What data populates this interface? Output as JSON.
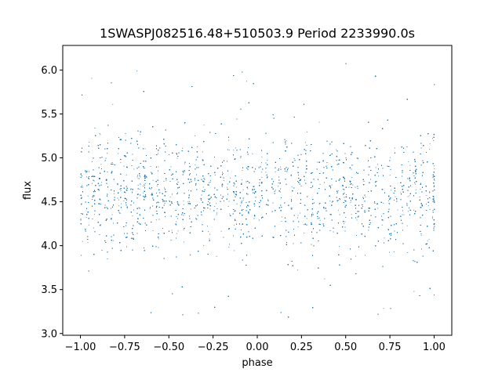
{
  "chart_data": {
    "type": "scatter",
    "title": "1SWASPJ082516.48+510503.9 Period 2233990.0s",
    "xlabel": "phase",
    "ylabel": "flux",
    "xlim": [
      -1.1,
      1.1
    ],
    "ylim": [
      2.98,
      6.28
    ],
    "x_ticks": [
      -1.0,
      -0.75,
      -0.5,
      -0.25,
      0.0,
      0.25,
      0.5,
      0.75,
      1.0
    ],
    "x_tick_labels": [
      "−1.00",
      "−0.75",
      "−0.50",
      "−0.25",
      "0.00",
      "0.25",
      "0.50",
      "0.75",
      "1.00"
    ],
    "y_ticks": [
      3.0,
      3.5,
      4.0,
      4.5,
      5.0,
      5.5,
      6.0
    ],
    "y_tick_labels": [
      "3.0",
      "3.5",
      "4.0",
      "4.5",
      "5.0",
      "5.5",
      "6.0"
    ],
    "grid": false,
    "legend": "none",
    "point_color": "#1f77b4",
    "series": [
      {
        "x_range": [
          -1.0,
          1.0
        ],
        "y_core_range": [
          3.85,
          5.35
        ],
        "y_full_range": [
          3.15,
          6.12
        ],
        "y_center": 4.6,
        "stripe_count": 56,
        "approx_points": 14000
      }
    ]
  }
}
